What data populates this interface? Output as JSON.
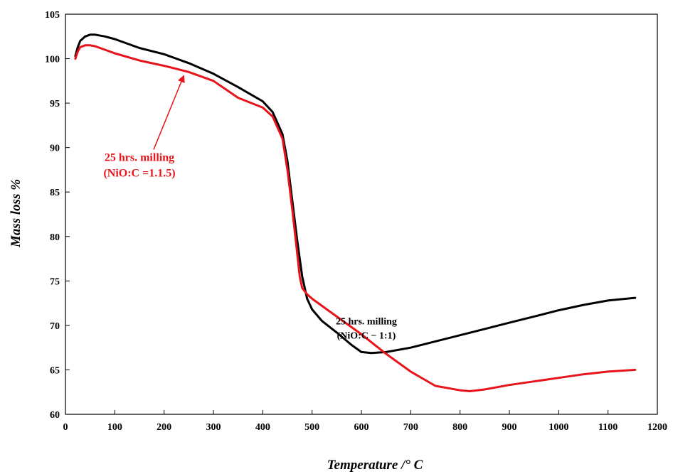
{
  "chart_data": {
    "type": "line",
    "xlabel": "Temperature /° C",
    "ylabel": "Mass loss %",
    "xlim": [
      0,
      1200
    ],
    "ylim": [
      60,
      105
    ],
    "xticks": [
      0,
      100,
      200,
      300,
      400,
      500,
      600,
      700,
      800,
      900,
      1000,
      1100,
      1200
    ],
    "yticks": [
      60,
      65,
      70,
      75,
      80,
      85,
      90,
      95,
      100,
      105
    ],
    "grid": false,
    "legend": "none",
    "series": [
      {
        "name": "25 hrs. milling (NiO:C = 1:1)",
        "color": "#000000",
        "x": [
          20,
          25,
          30,
          40,
          50,
          60,
          80,
          100,
          150,
          200,
          250,
          300,
          350,
          400,
          420,
          440,
          450,
          460,
          470,
          480,
          490,
          500,
          520,
          550,
          580,
          600,
          620,
          650,
          700,
          750,
          800,
          850,
          900,
          950,
          1000,
          1050,
          1100,
          1155
        ],
        "y": [
          100.3,
          101.3,
          102.0,
          102.5,
          102.7,
          102.7,
          102.5,
          102.2,
          101.2,
          100.5,
          99.5,
          98.3,
          96.8,
          95.2,
          94.0,
          91.5,
          88.5,
          84.0,
          79.5,
          75.5,
          73.0,
          71.8,
          70.5,
          69.2,
          67.8,
          67.0,
          66.9,
          67.0,
          67.5,
          68.2,
          68.9,
          69.6,
          70.3,
          71.0,
          71.7,
          72.3,
          72.8,
          73.1
        ]
      },
      {
        "name": "25 hrs. milling (NiO:C =1.1.5)",
        "color": "#e8141b",
        "x": [
          20,
          25,
          30,
          40,
          50,
          60,
          80,
          100,
          150,
          200,
          250,
          300,
          350,
          400,
          420,
          440,
          450,
          460,
          470,
          475,
          480,
          490,
          500,
          550,
          600,
          650,
          700,
          750,
          800,
          820,
          850,
          900,
          950,
          1000,
          1050,
          1100,
          1155
        ],
        "y": [
          100.0,
          100.8,
          101.3,
          101.5,
          101.5,
          101.4,
          101.0,
          100.6,
          99.8,
          99.2,
          98.5,
          97.5,
          95.6,
          94.5,
          93.5,
          91.0,
          87.5,
          83.0,
          78.0,
          75.5,
          74.2,
          73.5,
          73.0,
          71.0,
          69.0,
          66.8,
          64.8,
          63.2,
          62.7,
          62.6,
          62.8,
          63.3,
          63.7,
          64.1,
          64.5,
          64.8,
          65.0
        ]
      }
    ],
    "annotations": [
      {
        "lines": [
          "25 hrs. milling",
          "(NiO:C =1.1.5)"
        ],
        "color": "#e8141b",
        "x": 150,
        "y": 88.5,
        "arrow_to": [
          240,
          98.1
        ]
      },
      {
        "lines": [
          "25 hrs.  milling",
          "(NiO:C − 1:1)"
        ],
        "color": "#000000",
        "x": 610,
        "y": 70.1
      }
    ]
  }
}
